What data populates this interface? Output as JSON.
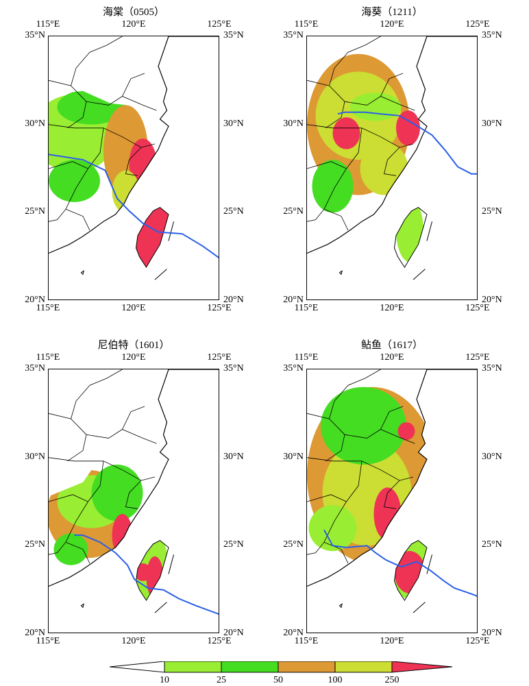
{
  "panels": [
    {
      "title": "海棠（0505）",
      "track": [
        [
          115.0,
          28.3
        ],
        [
          117.0,
          28.0
        ],
        [
          118.3,
          27.4
        ],
        [
          119.0,
          25.8
        ],
        [
          119.7,
          25.1
        ],
        [
          120.5,
          24.4
        ],
        [
          121.4,
          23.9
        ],
        [
          122.8,
          23.8
        ],
        [
          124.0,
          23.1
        ],
        [
          125.0,
          22.4
        ]
      ]
    },
    {
      "title": "海葵（1211）",
      "track": [
        [
          116.8,
          30.6
        ],
        [
          117.2,
          30.7
        ],
        [
          118.4,
          30.7
        ],
        [
          119.3,
          30.6
        ],
        [
          120.4,
          30.5
        ],
        [
          121.3,
          30.0
        ],
        [
          122.3,
          29.4
        ],
        [
          123.1,
          28.5
        ],
        [
          123.8,
          27.6
        ],
        [
          124.6,
          27.2
        ],
        [
          125.0,
          27.2
        ]
      ]
    },
    {
      "title": "尼伯特（1601）",
      "track": [
        [
          116.5,
          25.6
        ],
        [
          117.0,
          25.6
        ],
        [
          118.0,
          25.2
        ],
        [
          118.9,
          24.6
        ],
        [
          119.6,
          23.9
        ],
        [
          120.0,
          23.1
        ],
        [
          120.8,
          22.6
        ],
        [
          121.7,
          22.5
        ],
        [
          122.6,
          22.0
        ],
        [
          123.6,
          21.6
        ],
        [
          125.0,
          21.1
        ]
      ]
    },
    {
      "title": "鲇鱼（1617）",
      "track": [
        [
          116.0,
          25.9
        ],
        [
          116.5,
          25.0
        ],
        [
          117.3,
          24.9
        ],
        [
          118.5,
          25.0
        ],
        [
          119.0,
          24.6
        ],
        [
          119.6,
          24.2
        ],
        [
          120.5,
          23.8
        ],
        [
          121.4,
          24.1
        ],
        [
          122.2,
          23.6
        ],
        [
          123.0,
          23.0
        ],
        [
          123.6,
          22.6
        ],
        [
          124.2,
          22.4
        ],
        [
          124.8,
          22.2
        ],
        [
          125.0,
          22.1
        ]
      ]
    }
  ],
  "axes": {
    "lon_ticks": [
      "115°E",
      "120°E",
      "125°E"
    ],
    "lat_ticks": [
      "35°N",
      "30°N",
      "25°N",
      "20°N"
    ],
    "lon_range": [
      115,
      125
    ],
    "lat_range": [
      20,
      35
    ]
  },
  "legend": {
    "labels": [
      "10",
      "25",
      "50",
      "100",
      "250"
    ],
    "colors": [
      "#ffffff",
      "#99ee33",
      "#44dd22",
      "#dd9933",
      "#ccdd33",
      "#ee3355"
    ]
  },
  "colors": {
    "track": "#2a5ee8",
    "border": "#000000"
  }
}
